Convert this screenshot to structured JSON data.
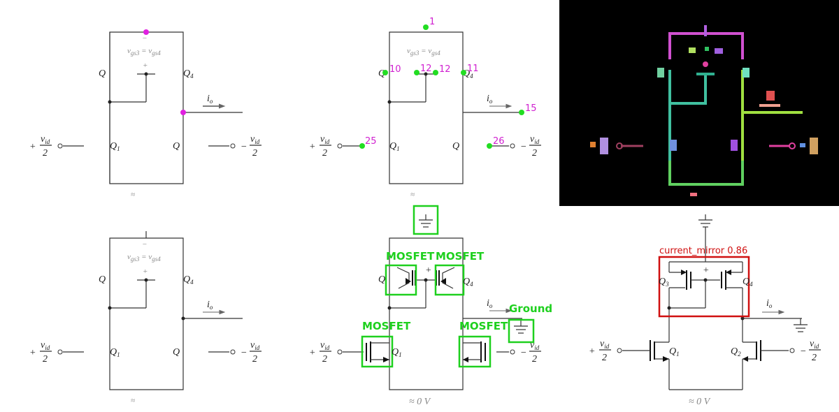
{
  "labels": {
    "vgs_eq": "v",
    "vgs_eq_sub1": "gs3",
    "vgs_eq_mid": " = v",
    "vgs_eq_sub2": "gs4",
    "plus": "+",
    "minus": "−",
    "q1": "Q",
    "q1_sub": "1",
    "q2": "Q",
    "q2_sub": "2",
    "q3": "Q",
    "q3_sub": "3",
    "q4": "Q",
    "q4_sub": "4",
    "io": "i",
    "io_sub": "o",
    "vid_num": "v",
    "vid_sub": "id",
    "vid_den": "2",
    "approx": "≈",
    "approx_0v": "≈ 0 V"
  },
  "keypoints": [
    "1",
    "10",
    "12",
    "12",
    "11",
    "15",
    "25",
    "26"
  ],
  "detections": {
    "mosfet": "MOSFET",
    "ground": "Ground",
    "current_mirror": "current_mirror 0.86"
  },
  "colors": {
    "keypoint_magenta": "#e020e0",
    "keypoint_green": "#22dd22",
    "detection_green": "#1ed01e",
    "detection_red": "#d01010",
    "seg_pink": "#d050d0",
    "seg_teal": "#40c0a0",
    "seg_lime": "#a0e040",
    "seg_green": "#60d060"
  }
}
